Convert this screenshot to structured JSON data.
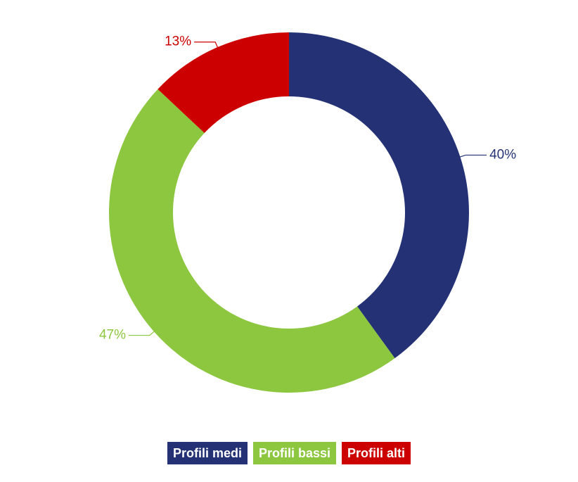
{
  "chart_data": {
    "type": "donut",
    "categories": [
      "Profili medi",
      "Profili bassi",
      "Profili alti"
    ],
    "values": [
      40,
      47,
      13
    ],
    "value_labels": [
      "40%",
      "47%",
      "13%"
    ],
    "colors": [
      "#243275",
      "#8dc63f",
      "#cc0000"
    ],
    "legend": "bottom"
  }
}
